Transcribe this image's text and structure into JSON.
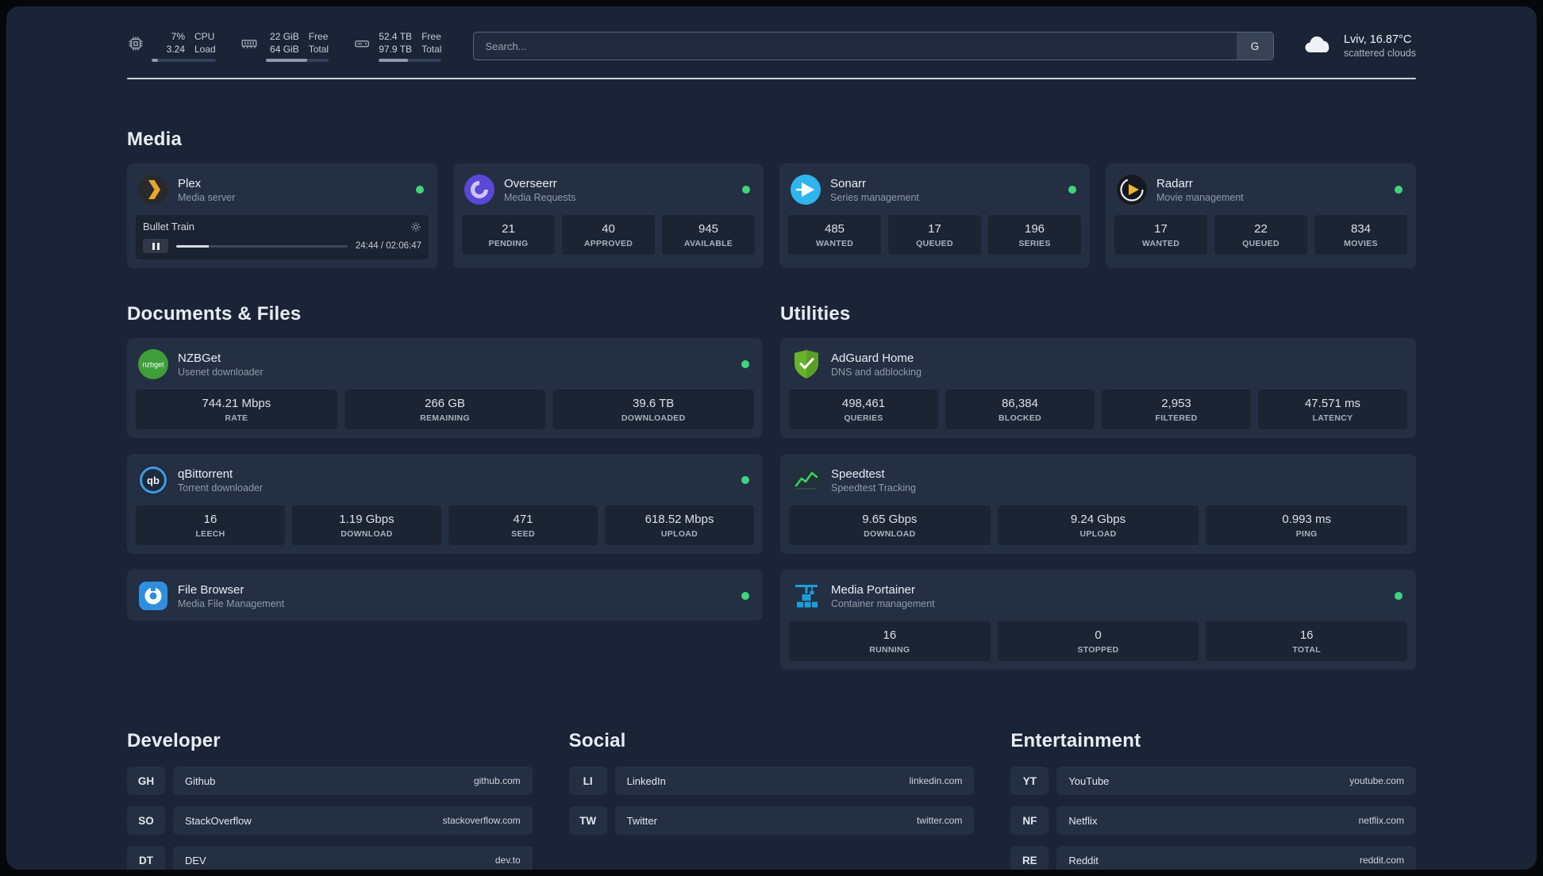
{
  "topbar": {
    "cpu": {
      "value": "7%",
      "sub": "3.24",
      "label_top": "CPU",
      "label_bottom": "Load",
      "bar": "10%"
    },
    "memory": {
      "value": "22 GiB",
      "sub": "64 GiB",
      "label_top": "Free",
      "label_bottom": "Total",
      "bar": "66%"
    },
    "disk": {
      "value": "52.4 TB",
      "sub": "97.9 TB",
      "label_top": "Free",
      "label_bottom": "Total",
      "bar": "47%"
    },
    "search": {
      "placeholder": "Search...",
      "provider": "G"
    },
    "weather": {
      "location": "Lviv, 16.87°C",
      "condition": "scattered clouds"
    }
  },
  "sections": {
    "media": "Media",
    "documents": "Documents & Files",
    "utilities": "Utilities",
    "developer": "Developer",
    "social": "Social",
    "entertainment": "Entertainment"
  },
  "services": {
    "plex": {
      "name": "Plex",
      "desc": "Media server",
      "player": {
        "title": "Bullet Train",
        "time": "24:44 / 02:06:47",
        "progress": "19%"
      }
    },
    "overseerr": {
      "name": "Overseerr",
      "desc": "Media Requests",
      "stats": [
        {
          "value": "21",
          "label": "PENDING"
        },
        {
          "value": "40",
          "label": "APPROVED"
        },
        {
          "value": "945",
          "label": "AVAILABLE"
        }
      ]
    },
    "sonarr": {
      "name": "Sonarr",
      "desc": "Series management",
      "stats": [
        {
          "value": "485",
          "label": "WANTED"
        },
        {
          "value": "17",
          "label": "QUEUED"
        },
        {
          "value": "196",
          "label": "SERIES"
        }
      ]
    },
    "radarr": {
      "name": "Radarr",
      "desc": "Movie management",
      "stats": [
        {
          "value": "17",
          "label": "WANTED"
        },
        {
          "value": "22",
          "label": "QUEUED"
        },
        {
          "value": "834",
          "label": "MOVIES"
        }
      ]
    },
    "nzbget": {
      "name": "NZBGet",
      "desc": "Usenet downloader",
      "stats": [
        {
          "value": "744.21 Mbps",
          "label": "RATE"
        },
        {
          "value": "266 GB",
          "label": "REMAINING"
        },
        {
          "value": "39.6 TB",
          "label": "DOWNLOADED"
        }
      ]
    },
    "qbittorrent": {
      "name": "qBittorrent",
      "desc": "Torrent downloader",
      "stats": [
        {
          "value": "16",
          "label": "LEECH"
        },
        {
          "value": "1.19 Gbps",
          "label": "DOWNLOAD"
        },
        {
          "value": "471",
          "label": "SEED"
        },
        {
          "value": "618.52 Mbps",
          "label": "UPLOAD"
        }
      ]
    },
    "filebrowser": {
      "name": "File Browser",
      "desc": "Media File Management"
    },
    "adguard": {
      "name": "AdGuard Home",
      "desc": "DNS and adblocking",
      "stats": [
        {
          "value": "498,461",
          "label": "QUERIES"
        },
        {
          "value": "86,384",
          "label": "BLOCKED"
        },
        {
          "value": "2,953",
          "label": "FILTERED"
        },
        {
          "value": "47.571 ms",
          "label": "LATENCY"
        }
      ]
    },
    "speedtest": {
      "name": "Speedtest",
      "desc": "Speedtest Tracking",
      "stats": [
        {
          "value": "9.65 Gbps",
          "label": "DOWNLOAD"
        },
        {
          "value": "9.24 Gbps",
          "label": "UPLOAD"
        },
        {
          "value": "0.993 ms",
          "label": "PING"
        }
      ]
    },
    "portainer": {
      "name": "Media Portainer",
      "desc": "Container management",
      "stats": [
        {
          "value": "16",
          "label": "RUNNING"
        },
        {
          "value": "0",
          "label": "STOPPED"
        },
        {
          "value": "16",
          "label": "TOTAL"
        }
      ]
    }
  },
  "bookmarks": {
    "developer": [
      {
        "abbr": "GH",
        "name": "Github",
        "url": "github.com"
      },
      {
        "abbr": "SO",
        "name": "StackOverflow",
        "url": "stackoverflow.com"
      },
      {
        "abbr": "DT",
        "name": "DEV",
        "url": "dev.to"
      }
    ],
    "social": [
      {
        "abbr": "LI",
        "name": "LinkedIn",
        "url": "linkedin.com"
      },
      {
        "abbr": "TW",
        "name": "Twitter",
        "url": "twitter.com"
      }
    ],
    "entertainment": [
      {
        "abbr": "YT",
        "name": "YouTube",
        "url": "youtube.com"
      },
      {
        "abbr": "NF",
        "name": "Netflix",
        "url": "netflix.com"
      },
      {
        "abbr": "RE",
        "name": "Reddit",
        "url": "reddit.com"
      }
    ]
  }
}
